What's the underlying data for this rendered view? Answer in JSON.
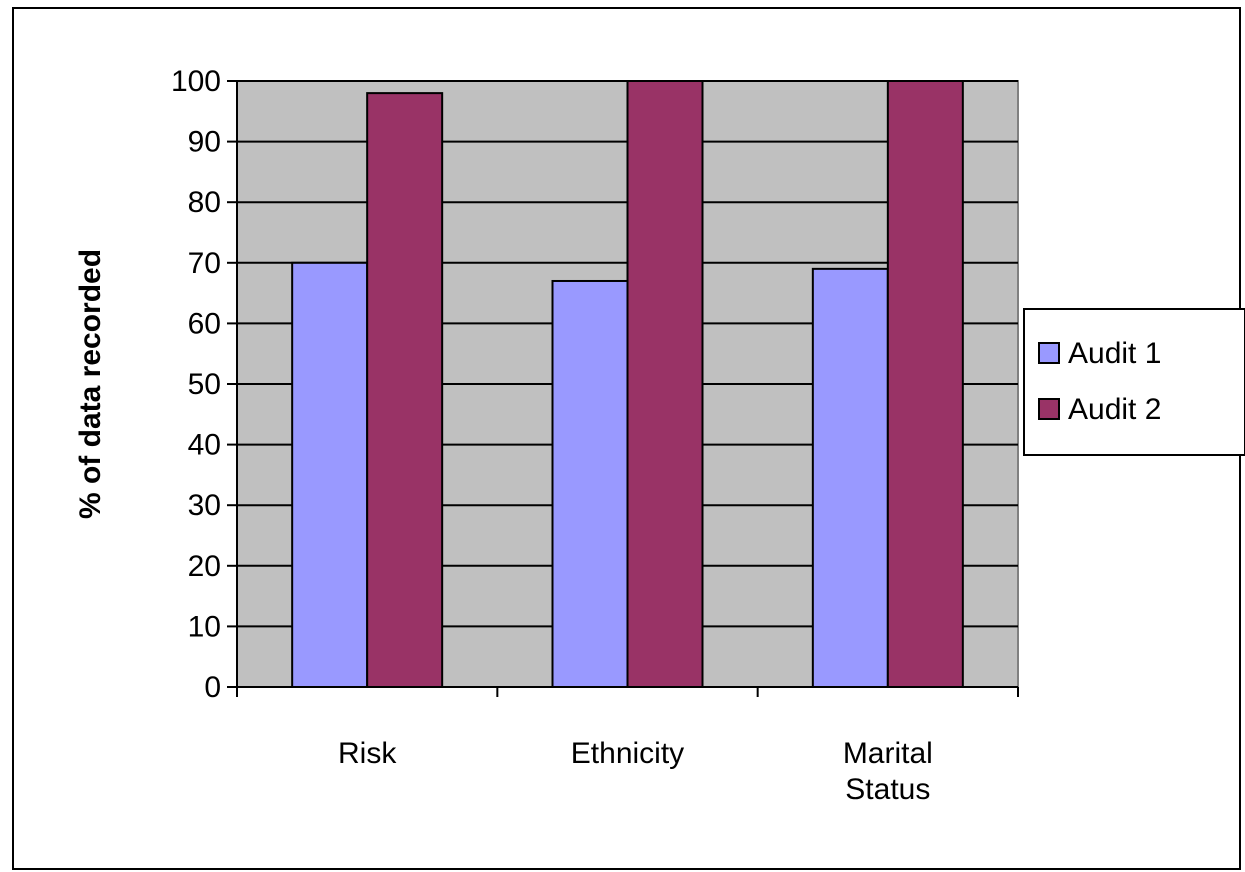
{
  "chart_data": {
    "type": "bar",
    "title": "",
    "xlabel": "",
    "ylabel": "% of data recorded",
    "ylim": [
      0,
      100
    ],
    "yticks": [
      0,
      10,
      20,
      30,
      40,
      50,
      60,
      70,
      80,
      90,
      100
    ],
    "grid": true,
    "legend_position": "right",
    "categories": [
      [
        "Risk"
      ],
      [
        "Ethnicity"
      ],
      [
        "Marital",
        "Status"
      ]
    ],
    "series": [
      {
        "name": "Audit 1",
        "color": "#9999ff",
        "values": [
          70,
          67,
          69
        ]
      },
      {
        "name": "Audit 2",
        "color": "#993366",
        "values": [
          98,
          100,
          100
        ]
      }
    ],
    "plot_background": "#c0c0c0"
  }
}
